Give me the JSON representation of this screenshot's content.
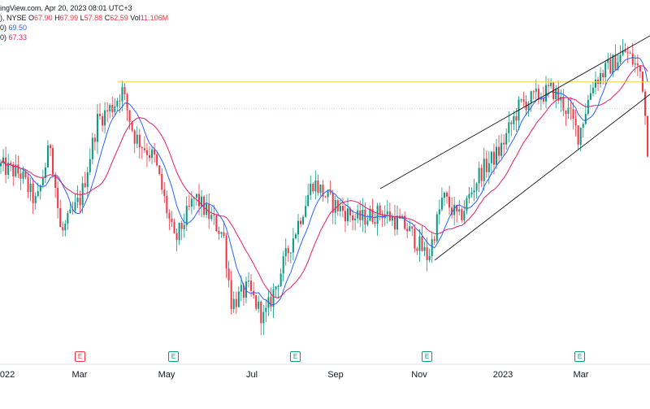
{
  "header": {
    "source_text": "ingView.com, Apr 20, 2023 08:01 UTC+3",
    "symbol_partial": "), NYSE",
    "ohlc": {
      "o_label": "O",
      "o_value": "67.90",
      "h_label": "H",
      "h_value": "67.99",
      "l_label": "L",
      "l_value": "57.88",
      "c_label": "C",
      "c_value": "62.59",
      "vol_label": "Vol",
      "vol_value": "11.106M"
    },
    "ma_lines": [
      {
        "prefix": "0)",
        "value": "69.50",
        "color": "#2962ff"
      },
      {
        "prefix": "0)",
        "value": "67.33",
        "color": "#e91e63"
      }
    ]
  },
  "chart_data": {
    "type": "candlestick",
    "x_tick_labels": [
      "2022",
      "Mar",
      "May",
      "Jul",
      "Sep",
      "Nov",
      "2023",
      "Mar"
    ],
    "earnings_markers": [
      {
        "label": "E",
        "color": "#f23645"
      },
      {
        "label": "E",
        "color": "#089981"
      },
      {
        "label": "E",
        "color": "#089981"
      },
      {
        "label": "E",
        "color": "#089981"
      },
      {
        "label": "E",
        "color": "#089981"
      }
    ],
    "price_range_approx": [
      40,
      82
    ],
    "resistance_level": 75.0,
    "dotted_level": 71.5,
    "key_points": [
      {
        "t": 0,
        "p": 64
      },
      {
        "t": 25,
        "p": 63
      },
      {
        "t": 45,
        "p": 59
      },
      {
        "t": 62,
        "p": 67
      },
      {
        "t": 75,
        "p": 55
      },
      {
        "t": 100,
        "p": 60
      },
      {
        "t": 120,
        "p": 70
      },
      {
        "t": 140,
        "p": 72
      },
      {
        "t": 150,
        "p": 74
      },
      {
        "t": 165,
        "p": 68
      },
      {
        "t": 190,
        "p": 65
      },
      {
        "t": 215,
        "p": 54
      },
      {
        "t": 240,
        "p": 60
      },
      {
        "t": 275,
        "p": 55
      },
      {
        "t": 285,
        "p": 46
      },
      {
        "t": 305,
        "p": 48
      },
      {
        "t": 325,
        "p": 44
      },
      {
        "t": 345,
        "p": 50
      },
      {
        "t": 365,
        "p": 56
      },
      {
        "t": 385,
        "p": 62
      },
      {
        "t": 410,
        "p": 59
      },
      {
        "t": 440,
        "p": 57
      },
      {
        "t": 470,
        "p": 58
      },
      {
        "t": 500,
        "p": 56
      },
      {
        "t": 527,
        "p": 52
      },
      {
        "t": 545,
        "p": 60
      },
      {
        "t": 565,
        "p": 57
      },
      {
        "t": 590,
        "p": 63
      },
      {
        "t": 615,
        "p": 66
      },
      {
        "t": 640,
        "p": 72
      },
      {
        "t": 680,
        "p": 74
      },
      {
        "t": 700,
        "p": 71
      },
      {
        "t": 712,
        "p": 68
      },
      {
        "t": 730,
        "p": 75
      },
      {
        "t": 770,
        "p": 79
      },
      {
        "t": 790,
        "p": 76
      },
      {
        "t": 800,
        "p": 62.59
      }
    ],
    "colors": {
      "up": "#089981",
      "down": "#f23645",
      "ma_fast": "#2962ff",
      "ma_slow": "#e91e63",
      "resistance": "#f5d63d",
      "trendline": "#131722"
    }
  }
}
